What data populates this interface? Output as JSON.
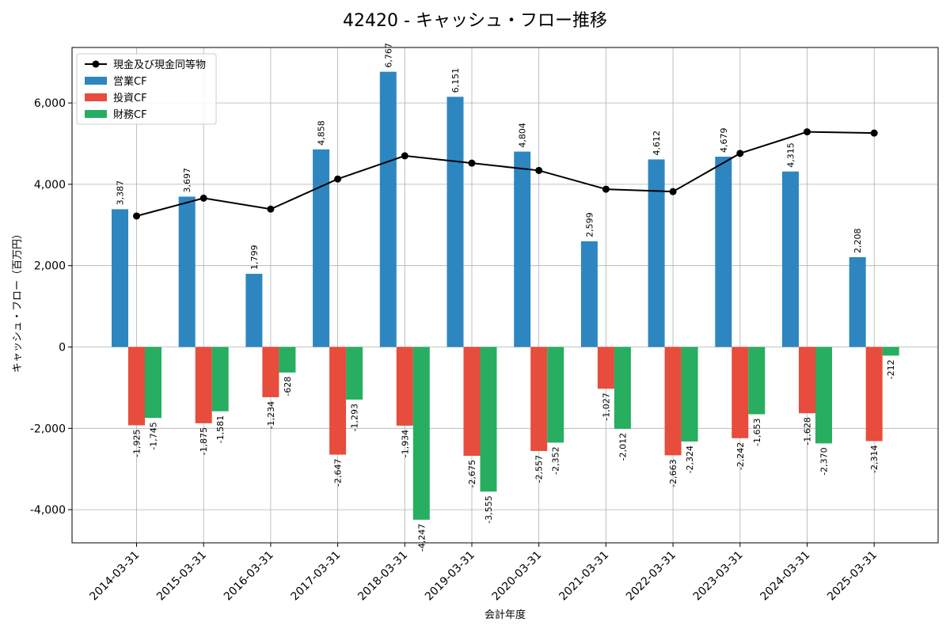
{
  "chart_data": {
    "type": "bar",
    "title": "42420 - キャッシュ・フロー推移",
    "xlabel": "会計年度",
    "ylabel": "キャッシュ・フロー（百万円）",
    "ylim": [
      -4800,
      7400
    ],
    "yticks": [
      -4000,
      -2000,
      0,
      2000,
      4000,
      6000
    ],
    "ytick_labels": [
      "-4,000",
      "-2,000",
      "0",
      "2,000",
      "4,000",
      "6,000"
    ],
    "grid": true,
    "legend_position": "top-left",
    "categories": [
      "2014-03-31",
      "2015-03-31",
      "2016-03-31",
      "2017-03-31",
      "2018-03-31",
      "2019-03-31",
      "2020-03-31",
      "2021-03-31",
      "2022-03-31",
      "2023-03-31",
      "2024-03-31",
      "2025-03-31"
    ],
    "series": [
      {
        "name": "営業CF",
        "kind": "bar",
        "color": "#2e86c1",
        "values": [
          3387,
          3697,
          1799,
          4858,
          6767,
          6151,
          4804,
          2599,
          4612,
          4679,
          4315,
          2208
        ],
        "labels": [
          "3,387",
          "3,697",
          "1,799",
          "4,858",
          "6,767",
          "6,151",
          "4,804",
          "2,599",
          "4,612",
          "4,679",
          "4,315",
          "2,208"
        ]
      },
      {
        "name": "投資CF",
        "kind": "bar",
        "color": "#e74c3c",
        "values": [
          -1925,
          -1875,
          -1234,
          -2647,
          -1934,
          -2675,
          -2557,
          -1027,
          -2663,
          -2242,
          -1628,
          -2314
        ],
        "labels": [
          "-1,925",
          "-1,875",
          "-1,234",
          "-2,647",
          "-1,934",
          "-2,675",
          "-2,557",
          "-1,027",
          "-2,663",
          "-2,242",
          "-1,628",
          "-2,314"
        ]
      },
      {
        "name": "財務CF",
        "kind": "bar",
        "color": "#27ae60",
        "values": [
          -1745,
          -1581,
          -628,
          -1293,
          -4247,
          -3555,
          -2352,
          -2012,
          -2324,
          -1653,
          -2370,
          -212
        ],
        "labels": [
          "-1,745",
          "-1,581",
          "-628",
          "-1,293",
          "-4,247",
          "-3,555",
          "-2,352",
          "-2,012",
          "-2,324",
          "-1,653",
          "-2,370",
          "-212"
        ]
      },
      {
        "name": "現金及び現金同等物",
        "kind": "line",
        "color": "#000000",
        "values": [
          3220,
          3660,
          3390,
          4130,
          4700,
          4520,
          4340,
          3880,
          3820,
          4760,
          5290,
          5260
        ]
      }
    ]
  }
}
